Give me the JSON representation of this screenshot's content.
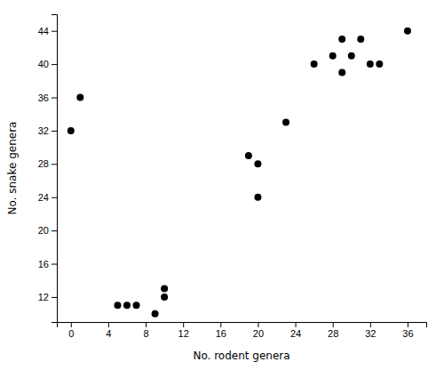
{
  "chart_data": {
    "type": "scatter",
    "x": [
      0,
      1,
      5,
      6,
      7,
      9,
      10,
      10,
      19,
      20,
      20,
      23,
      26,
      28,
      29,
      29,
      30,
      31,
      32,
      33,
      36
    ],
    "y": [
      32,
      36,
      11,
      11,
      11,
      10,
      13,
      12,
      29,
      28,
      24,
      33,
      40,
      41,
      39,
      43,
      41,
      43,
      40,
      40,
      44
    ],
    "xlabel": "No. rodent genera",
    "ylabel": "No. snake genera",
    "xlim": [
      -1.5,
      38
    ],
    "ylim": [
      9,
      46
    ],
    "xticks": [
      0,
      4,
      8,
      12,
      16,
      20,
      24,
      28,
      32,
      36
    ],
    "yticks": [
      12,
      16,
      20,
      24,
      28,
      32,
      36,
      40,
      44
    ],
    "color": "#000000"
  }
}
